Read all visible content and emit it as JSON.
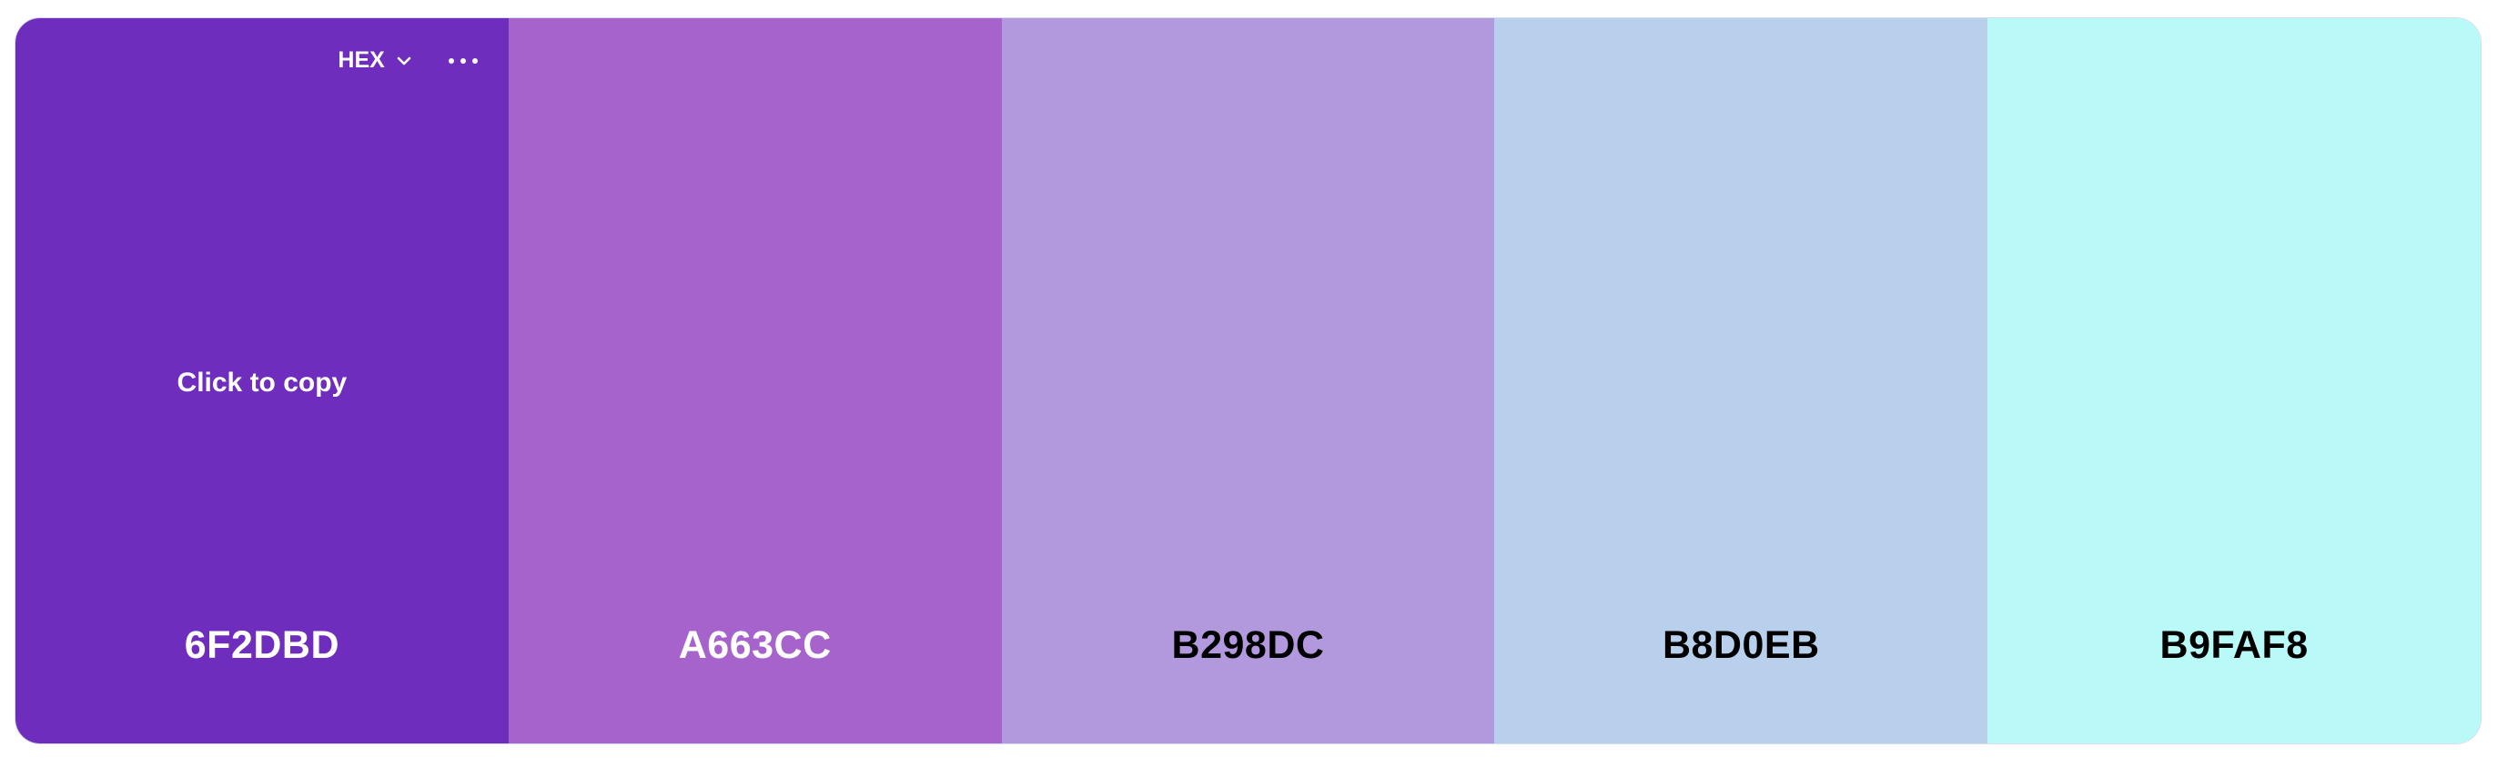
{
  "toolbar": {
    "format_label": "HEX",
    "format_icon": "chevron-down-icon",
    "more_icon": "more-horizontal-icon"
  },
  "hover_hint": "Click to copy",
  "swatches": [
    {
      "hex": "6F2DBD",
      "color": "#6F2DBD",
      "text_color": "#FFFFFF"
    },
    {
      "hex": "A663CC",
      "color": "#A663CC",
      "text_color": "#FFFFFF"
    },
    {
      "hex": "B298DC",
      "color": "#B298DC",
      "text_color": "#000000"
    },
    {
      "hex": "B8D0EB",
      "color": "#B8D0EB",
      "text_color": "#000000"
    },
    {
      "hex": "B9FAF8",
      "color": "#B9FAF8",
      "text_color": "#000000"
    }
  ]
}
